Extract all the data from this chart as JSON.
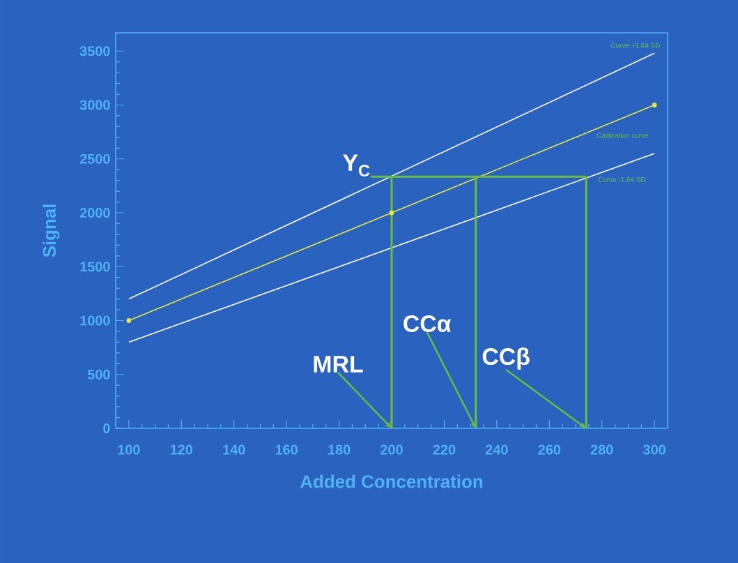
{
  "chart_data": {
    "type": "line",
    "xlabel": "Added Concentration",
    "ylabel": "Signal",
    "xlim": [
      95,
      305
    ],
    "ylim": [
      0,
      3670
    ],
    "xticks": [
      100,
      120,
      140,
      160,
      180,
      200,
      220,
      240,
      260,
      280,
      300
    ],
    "yticks": [
      0,
      500,
      1000,
      1500,
      2000,
      2500,
      3000,
      3500
    ],
    "series": [
      {
        "name": "Curve +1.64 SD",
        "color": "#ffffff",
        "x": [
          100,
          300
        ],
        "values": [
          1200,
          3480
        ]
      },
      {
        "name": "Calibration curve",
        "color": "#e8e83a",
        "x": [
          100,
          200,
          300
        ],
        "values": [
          1000,
          2000,
          3000
        ],
        "marker": "circle"
      },
      {
        "name": "Curve -1.64 SD",
        "color": "#ffffff",
        "x": [
          100,
          300
        ],
        "values": [
          800,
          2550
        ]
      },
      {
        "color": "#6abf3a",
        "x": [
          192,
          274
        ],
        "values": [
          2335,
          2335
        ]
      },
      {
        "color": "#6abf3a",
        "x": [
          200,
          200
        ],
        "values": [
          0,
          2335
        ]
      },
      {
        "color": "#6abf3a",
        "x": [
          232,
          232
        ],
        "values": [
          0,
          2335
        ]
      },
      {
        "color": "#6abf3a",
        "x": [
          274,
          274
        ],
        "values": [
          0,
          2335
        ]
      }
    ],
    "annotations": [
      {
        "text": "Y$_{C}$",
        "x": 192,
        "y": 2335
      },
      {
        "text": "MRL",
        "x": 200,
        "y": 0
      },
      {
        "text": "CCα",
        "x": 232,
        "y": 0
      },
      {
        "text": "CCβ",
        "x": 274,
        "y": 0
      }
    ]
  }
}
